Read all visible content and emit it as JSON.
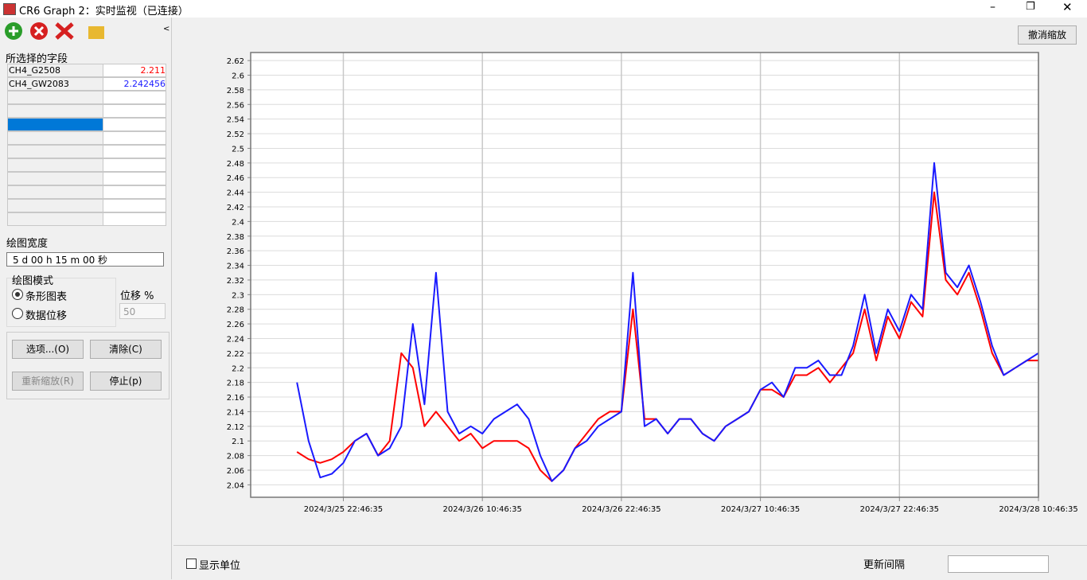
{
  "window_title": "CR6 Graph 2：实时监视（已连接）",
  "fields_panel": {
    "title": "所选择的字段",
    "current_values": [
      2.211,
      2.242456
    ]
  },
  "plot_width": {
    "label": "绘图宽度",
    "value": "5 d 00 h 15 m 00 秒"
  },
  "plot_mode": {
    "label": "绘图模式",
    "options": [
      "条形图表",
      "数据位移"
    ],
    "shift_label": "位移 %",
    "shift_value": "50"
  },
  "buttons": {
    "options": "选项...(O)",
    "clear": "清除(C)",
    "rescale": "重新缩放(R)",
    "stop": "停止(p)",
    "undo_zoom": "撤消缩放"
  },
  "footer": {
    "show_units": "显示单位",
    "update_interval": "更新间隔"
  },
  "chart_data": {
    "type": "line",
    "x": [
      "2024/3/25 18:46:35",
      "2024/3/25 19:46:35",
      "2024/3/25 20:46:35",
      "2024/3/25 21:46:35",
      "2024/3/25 22:46:35",
      "2024/3/25 23:46:35",
      "2024/3/26 0:46:35",
      "2024/3/26 1:46:35",
      "2024/3/26 2:46:35",
      "2024/3/26 3:46:35",
      "2024/3/26 4:46:35",
      "2024/3/26 5:46:35",
      "2024/3/26 6:46:35",
      "2024/3/26 7:46:35",
      "2024/3/26 8:46:35",
      "2024/3/26 9:46:35",
      "2024/3/26 10:46:35",
      "2024/3/26 11:46:35",
      "2024/3/26 12:46:35",
      "2024/3/26 13:46:35",
      "2024/3/26 14:46:35",
      "2024/3/26 15:46:35",
      "2024/3/26 16:46:35",
      "2024/3/26 17:46:35",
      "2024/3/26 18:46:35",
      "2024/3/26 19:46:35",
      "2024/3/26 20:46:35",
      "2024/3/26 21:46:35",
      "2024/3/26 22:46:35",
      "2024/3/26 23:46:35",
      "2024/3/27 0:46:35",
      "2024/3/27 1:46:35",
      "2024/3/27 2:46:35",
      "2024/3/27 3:46:35",
      "2024/3/27 4:46:35",
      "2024/3/27 5:46:35",
      "2024/3/27 6:46:35",
      "2024/3/27 7:46:35",
      "2024/3/27 8:46:35",
      "2024/3/27 9:46:35",
      "2024/3/27 10:46:35",
      "2024/3/27 11:46:35",
      "2024/3/27 12:46:35",
      "2024/3/27 13:46:35",
      "2024/3/27 14:46:35",
      "2024/3/27 15:46:35",
      "2024/3/27 16:46:35",
      "2024/3/27 17:46:35",
      "2024/3/27 18:46:35",
      "2024/3/27 19:46:35",
      "2024/3/27 20:46:35",
      "2024/3/27 21:46:35",
      "2024/3/27 22:46:35",
      "2024/3/27 23:46:35",
      "2024/3/28 0:46:35",
      "2024/3/28 1:46:35",
      "2024/3/28 2:46:35",
      "2024/3/28 3:46:35",
      "2024/3/28 4:46:35",
      "2024/3/28 5:46:35",
      "2024/3/28 6:46:35",
      "2024/3/28 7:46:35",
      "2024/3/28 8:46:35",
      "2024/3/28 9:46:35",
      "2024/3/28 10:46:35"
    ],
    "series": [
      {
        "name": "CH4_G2508",
        "color": "#ff0000",
        "values": [
          2.085,
          2.075,
          2.07,
          2.075,
          2.085,
          2.1,
          2.11,
          2.08,
          2.1,
          2.22,
          2.2,
          2.12,
          2.14,
          2.12,
          2.1,
          2.11,
          2.09,
          2.1,
          2.1,
          2.1,
          2.09,
          2.06,
          2.045,
          2.06,
          2.09,
          2.11,
          2.13,
          2.14,
          2.14,
          2.28,
          2.13,
          2.13,
          2.11,
          2.13,
          2.13,
          2.11,
          2.1,
          2.12,
          2.13,
          2.14,
          2.17,
          2.17,
          2.16,
          2.19,
          2.19,
          2.2,
          2.18,
          2.2,
          2.22,
          2.28,
          2.21,
          2.27,
          2.24,
          2.29,
          2.27,
          2.44,
          2.32,
          2.3,
          2.33,
          2.28,
          2.22,
          2.19,
          2.2,
          2.21,
          2.21
        ]
      },
      {
        "name": "CH4_GW2083",
        "color": "#1a1aff",
        "values": [
          2.18,
          2.1,
          2.05,
          2.055,
          2.07,
          2.1,
          2.11,
          2.08,
          2.09,
          2.12,
          2.26,
          2.15,
          2.33,
          2.14,
          2.11,
          2.12,
          2.11,
          2.13,
          2.14,
          2.15,
          2.13,
          2.08,
          2.045,
          2.06,
          2.09,
          2.1,
          2.12,
          2.13,
          2.14,
          2.33,
          2.12,
          2.13,
          2.11,
          2.13,
          2.13,
          2.11,
          2.1,
          2.12,
          2.13,
          2.14,
          2.17,
          2.18,
          2.16,
          2.2,
          2.2,
          2.21,
          2.19,
          2.19,
          2.23,
          2.3,
          2.22,
          2.28,
          2.25,
          2.3,
          2.28,
          2.48,
          2.33,
          2.31,
          2.34,
          2.29,
          2.23,
          2.19,
          2.2,
          2.21,
          2.22
        ]
      }
    ],
    "xlim": [
      "2024/3/25 14:46:35",
      "2024/3/28 10:46:35"
    ],
    "xticks": [
      "2024/3/25 22:46:35",
      "2024/3/26 10:46:35",
      "2024/3/26 22:46:35",
      "2024/3/27 10:46:35",
      "2024/3/27 22:46:35",
      "2024/3/28 10:46:35"
    ],
    "ylim": [
      2.023,
      2.631
    ],
    "yticks": [
      2.04,
      2.06,
      2.08,
      2.1,
      2.12,
      2.14,
      2.16,
      2.18,
      2.2,
      2.22,
      2.24,
      2.26,
      2.28,
      2.3,
      2.32,
      2.34,
      2.36,
      2.38,
      2.4,
      2.42,
      2.44,
      2.46,
      2.48,
      2.5,
      2.52,
      2.54,
      2.56,
      2.58,
      2.6,
      2.62
    ],
    "grid": true
  }
}
